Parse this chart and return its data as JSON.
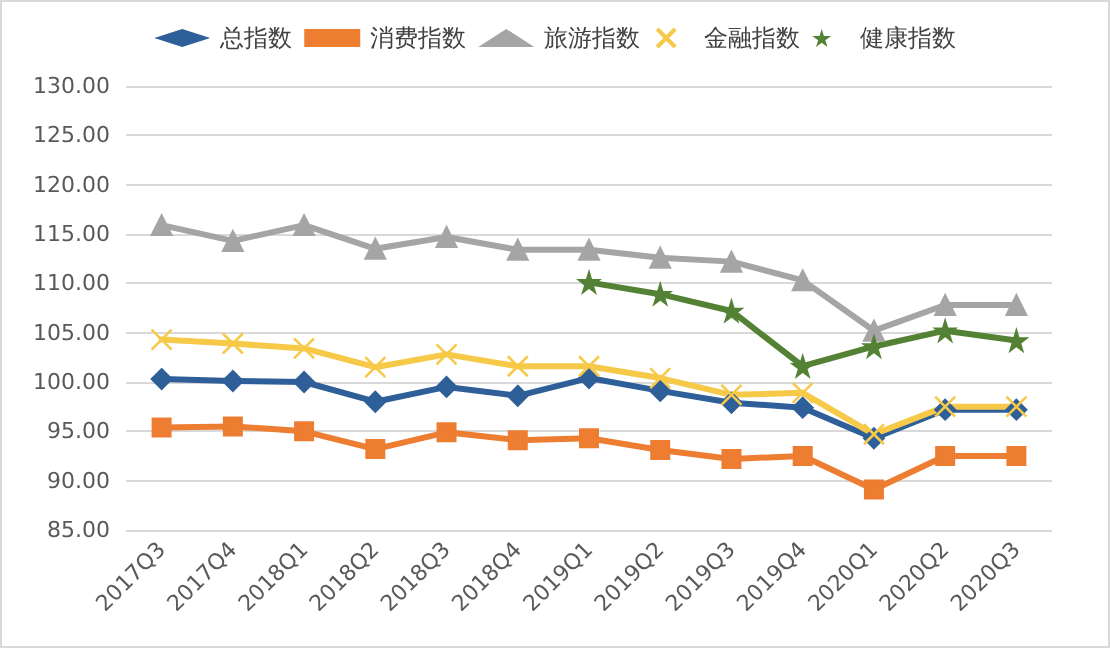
{
  "chart_data": {
    "type": "line",
    "categories": [
      "2017Q3",
      "2017Q4",
      "2018Q1",
      "2018Q2",
      "2018Q3",
      "2018Q4",
      "2019Q1",
      "2019Q2",
      "2019Q3",
      "2019Q4",
      "2020Q1",
      "2020Q2",
      "2020Q3"
    ],
    "series": [
      {
        "name": "总指数",
        "color": "#2f5f98",
        "marker": "diamond",
        "values": [
          100.3,
          100.1,
          100.0,
          98.0,
          99.5,
          98.6,
          100.4,
          99.1,
          97.9,
          97.4,
          94.3,
          97.2,
          97.2
        ]
      },
      {
        "name": "消费指数",
        "color": "#ed7d31",
        "marker": "square",
        "values": [
          95.4,
          95.5,
          95.0,
          93.2,
          94.9,
          94.1,
          94.3,
          93.1,
          92.2,
          92.5,
          89.1,
          92.5,
          92.5
        ]
      },
      {
        "name": "旅游指数",
        "color": "#a5a5a5",
        "marker": "triangle",
        "values": [
          115.9,
          114.3,
          115.9,
          113.5,
          114.7,
          113.4,
          113.4,
          112.6,
          112.2,
          110.3,
          105.2,
          107.8,
          107.8
        ]
      },
      {
        "name": "金融指数",
        "color": "#f7c948",
        "marker": "cross",
        "values": [
          104.3,
          103.9,
          103.4,
          101.5,
          102.8,
          101.6,
          101.6,
          100.4,
          98.7,
          98.9,
          94.7,
          97.5,
          97.5
        ]
      },
      {
        "name": "健康指数",
        "color": "#548235",
        "marker": "star",
        "values": [
          null,
          null,
          null,
          null,
          null,
          null,
          110.1,
          108.9,
          107.2,
          101.6,
          103.6,
          105.2,
          104.2
        ]
      }
    ],
    "ylim": [
      85,
      130
    ],
    "yticks": [
      {
        "value": 85,
        "label": "85.00"
      },
      {
        "value": 90,
        "label": "90.00"
      },
      {
        "value": 95,
        "label": "95.00"
      },
      {
        "value": 100,
        "label": "100.00"
      },
      {
        "value": 105,
        "label": "105.00"
      },
      {
        "value": 110,
        "label": "110.00"
      },
      {
        "value": 115,
        "label": "115.00"
      },
      {
        "value": 120,
        "label": "120.00"
      },
      {
        "value": 125,
        "label": "125.00"
      },
      {
        "value": 130,
        "label": "130.00"
      }
    ],
    "grid": "y",
    "legend": "top",
    "line_style": "solid"
  }
}
